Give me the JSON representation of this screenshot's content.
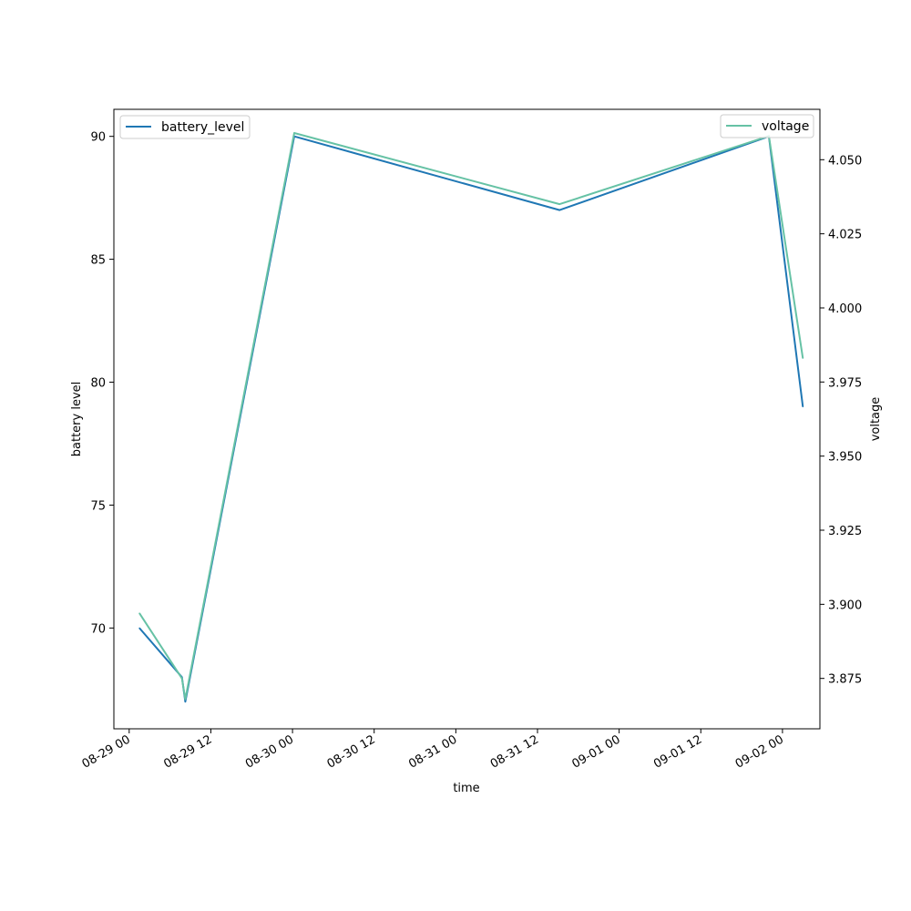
{
  "chart_data": {
    "type": "line",
    "title": "",
    "xlabel": "time",
    "ylabel": "battery level",
    "y2label": "voltage",
    "x_ticks": [
      "08-29 00",
      "08-29 12",
      "08-30 00",
      "08-30 12",
      "08-31 00",
      "08-31 12",
      "09-01 00",
      "09-01 12",
      "09-02 00"
    ],
    "x_tick_dates": [
      "2023-08-29T00:00",
      "2023-08-29T12:00",
      "2023-08-30T00:00",
      "2023-08-30T12:00",
      "2023-08-31T00:00",
      "2023-08-31T12:00",
      "2023-09-01T00:00",
      "2023-09-01T12:00",
      "2023-09-02T00:00"
    ],
    "xlim": [
      "2023-08-28T21:45",
      "2023-09-02T05:30"
    ],
    "ylim": [
      65.9,
      91.1
    ],
    "y_ticks": [
      70,
      75,
      80,
      85,
      90
    ],
    "y2lim": [
      3.858,
      4.067
    ],
    "y2_ticks": [
      "3.875",
      "3.900",
      "3.925",
      "3.950",
      "3.975",
      "4.000",
      "4.025",
      "4.050"
    ],
    "grid": false,
    "series": [
      {
        "name": "battery_level",
        "axis": "left",
        "color": "#1f77b4",
        "legend": "top-left",
        "points": [
          {
            "x": "2023-08-29T01:30",
            "y": 70
          },
          {
            "x": "2023-08-29T07:45",
            "y": 68
          },
          {
            "x": "2023-08-29T08:15",
            "y": 67
          },
          {
            "x": "2023-08-30T00:15",
            "y": 90
          },
          {
            "x": "2023-08-31T15:15",
            "y": 87
          },
          {
            "x": "2023-09-01T22:00",
            "y": 90
          },
          {
            "x": "2023-09-02T03:00",
            "y": 79
          }
        ]
      },
      {
        "name": "voltage",
        "axis": "right",
        "color": "#66c2a5",
        "legend": "top-right",
        "points": [
          {
            "x": "2023-08-29T01:30",
            "y": 3.897
          },
          {
            "x": "2023-08-29T07:45",
            "y": 3.875
          },
          {
            "x": "2023-08-29T08:15",
            "y": 3.868
          },
          {
            "x": "2023-08-30T00:15",
            "y": 4.059
          },
          {
            "x": "2023-08-31T15:15",
            "y": 4.035
          },
          {
            "x": "2023-09-01T22:00",
            "y": 4.058
          },
          {
            "x": "2023-09-02T03:00",
            "y": 3.983
          }
        ]
      }
    ]
  }
}
